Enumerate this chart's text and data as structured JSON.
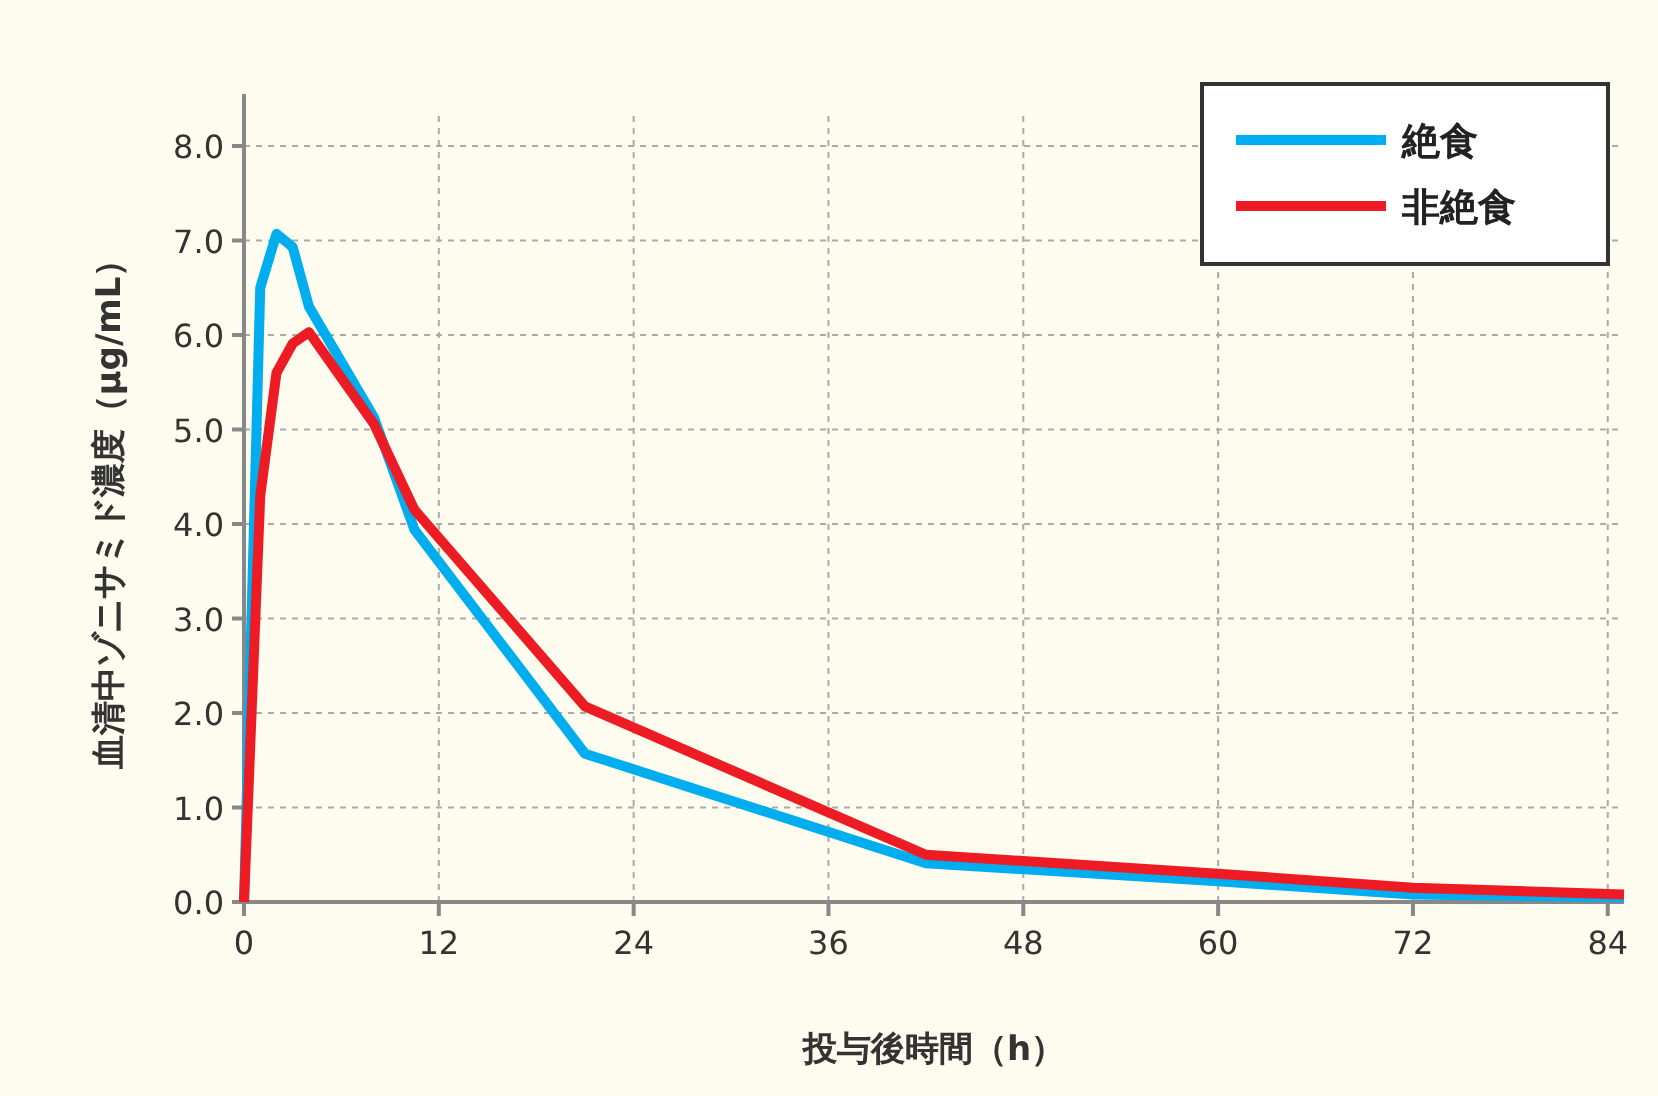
{
  "chart_data": {
    "type": "line",
    "xlabel": "投与後時間（h）",
    "ylabel": "血清中ゾニサミド濃度（μg/mL）",
    "series": [
      {
        "name": "絶食",
        "color": "#00aeef",
        "x": [
          0,
          1,
          2,
          3,
          4,
          8,
          10.5,
          21,
          42,
          60,
          72,
          85
        ],
        "values": [
          0,
          6.5,
          7.07,
          6.93,
          6.3,
          5.13,
          3.94,
          1.57,
          0.41,
          0.22,
          0.08,
          0.05
        ]
      },
      {
        "name": "非絶食",
        "color": "#ed1c24",
        "x": [
          0,
          1,
          2,
          3,
          4,
          8,
          10.5,
          21,
          42,
          60,
          72,
          85
        ],
        "values": [
          0,
          4.3,
          5.6,
          5.91,
          6.03,
          5.06,
          4.15,
          2.07,
          0.5,
          0.3,
          0.15,
          0.08
        ]
      }
    ],
    "xlim": [
      0,
      85
    ],
    "xticks": [
      0,
      12,
      24,
      36,
      48,
      60,
      72,
      84
    ],
    "ylim": [
      0,
      8
    ],
    "yticks": [
      {
        "value": 0,
        "label": "0.0"
      },
      {
        "value": 1,
        "label": "1.0"
      },
      {
        "value": 2,
        "label": "2.0"
      },
      {
        "value": 3,
        "label": "3.0"
      },
      {
        "value": 4,
        "label": "4.0"
      },
      {
        "value": 5,
        "label": "5.0"
      },
      {
        "value": 6,
        "label": "6.0"
      },
      {
        "value": 7,
        "label": "7.0"
      },
      {
        "value": 8,
        "label": "8.0"
      }
    ],
    "grid": true,
    "legend": "top right",
    "line_style": "solid",
    "marker": "none"
  }
}
